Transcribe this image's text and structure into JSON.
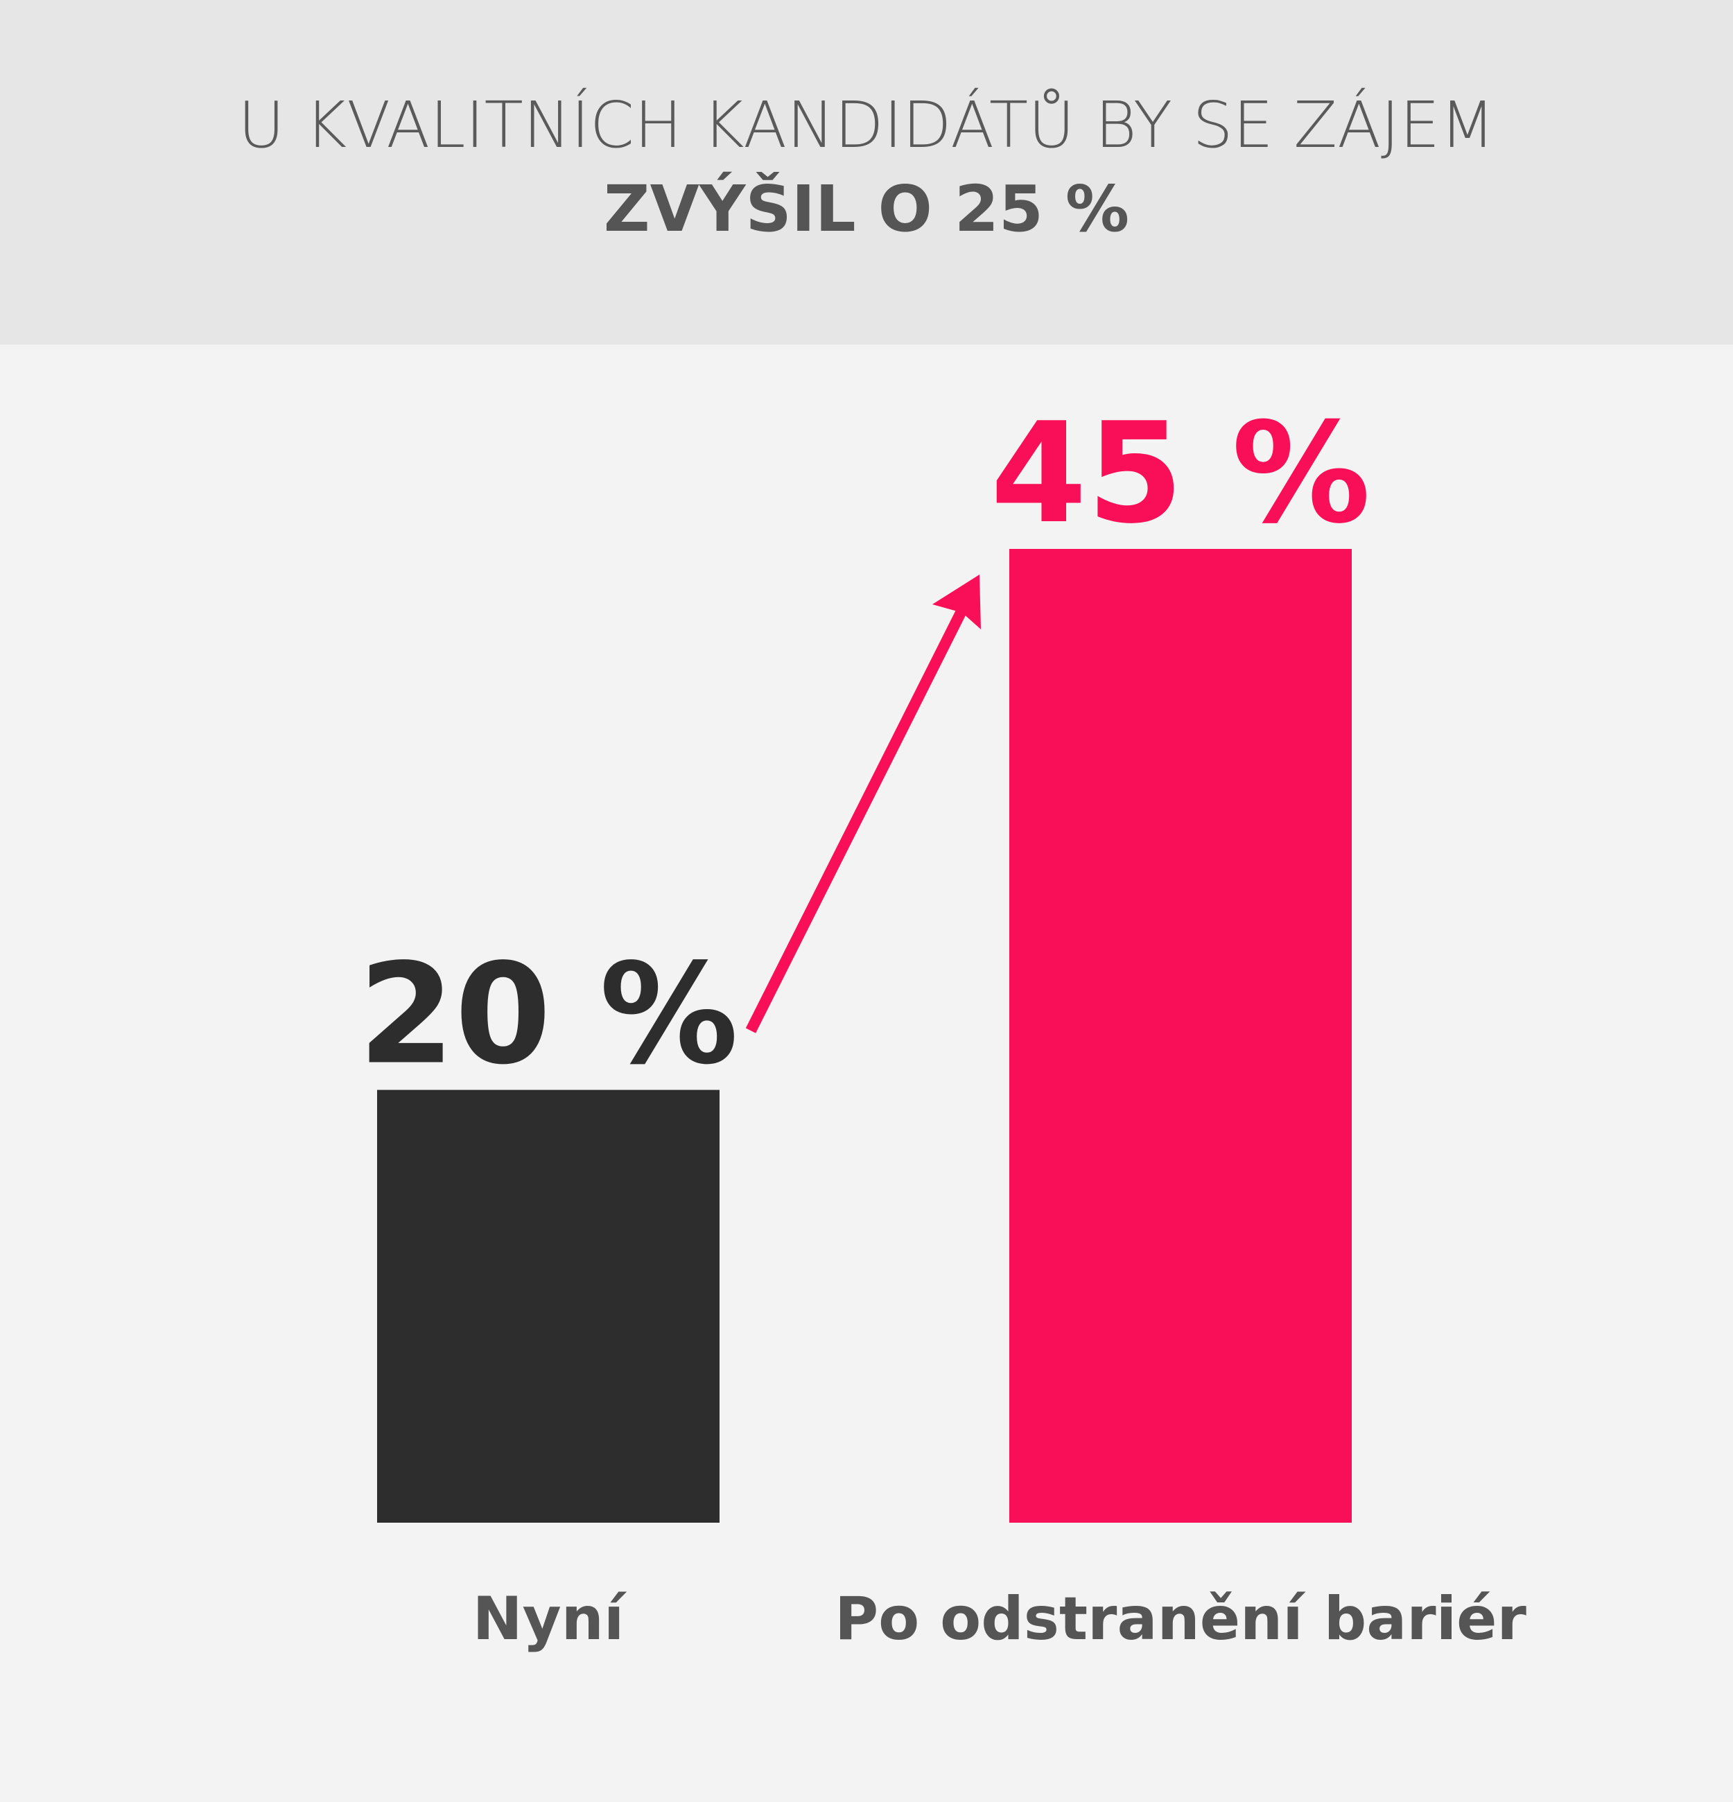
{
  "chart_data": {
    "type": "bar",
    "title": [
      "U KVALITNÍCH KANDIDÁTŮ BY SE ZÁJEM",
      "ZVÝŠIL O 25 %"
    ],
    "categories": [
      "Nyní",
      "Po odstranění bariér"
    ],
    "values": [
      20,
      45
    ],
    "value_labels": [
      "20 %",
      "45 %"
    ],
    "colors": [
      "#2d2d2d",
      "#f90f57"
    ]
  }
}
